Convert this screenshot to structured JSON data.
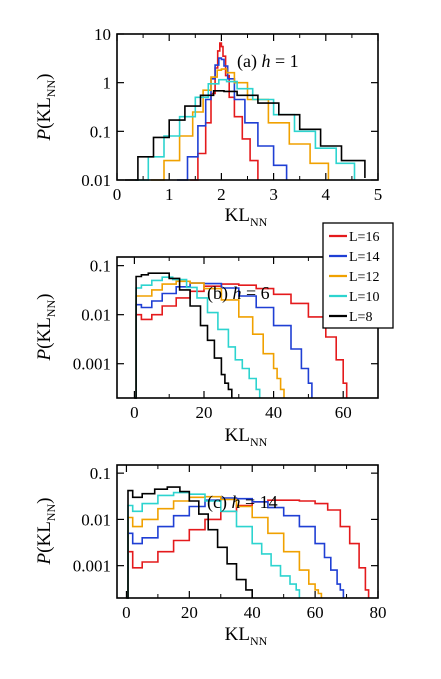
{
  "chart_data": [
    {
      "type": "line",
      "title": "(a) h = 1",
      "title_prefix": "(a) ",
      "title_var": "h",
      "title_suffix": " = 1",
      "xlabel": "KL",
      "xlabel_sub": "NN",
      "ylabel_var": "P",
      "ylabel_open": "(KL",
      "ylabel_sub": "NN",
      "ylabel_close": ")",
      "xlim": [
        0,
        5
      ],
      "ylim": [
        0.01,
        10
      ],
      "yscale": "log",
      "xticks": [
        0,
        1,
        2,
        3,
        4,
        5
      ],
      "xtick_labels": [
        "0",
        "1",
        "2",
        "3",
        "4",
        "5"
      ],
      "yticks": [
        0.01,
        0.1,
        1,
        10
      ],
      "ytick_labels": [
        "0.01",
        "0.1",
        "1",
        "10"
      ],
      "series": [
        {
          "name": "L=16",
          "color": "#e41a1c",
          "x": [
            1.4,
            1.55,
            1.7,
            1.8,
            1.88,
            1.93,
            1.97,
            2.0,
            2.03,
            2.08,
            2.15,
            2.25,
            2.4,
            2.55,
            2.7
          ],
          "y": [
            0.01,
            0.035,
            0.15,
            0.6,
            2.0,
            4.5,
            6.5,
            5.5,
            3.5,
            1.4,
            0.5,
            0.2,
            0.07,
            0.025,
            0.01
          ]
        },
        {
          "name": "L=14",
          "color": "#1f3fd4",
          "x": [
            1.15,
            1.35,
            1.55,
            1.7,
            1.8,
            1.88,
            1.95,
            2.0,
            2.05,
            2.12,
            2.25,
            2.45,
            2.7,
            3.0,
            3.25
          ],
          "y": [
            0.01,
            0.03,
            0.13,
            0.45,
            1.2,
            2.3,
            3.2,
            3.0,
            2.2,
            1.2,
            0.45,
            0.15,
            0.05,
            0.02,
            0.01
          ]
        },
        {
          "name": "L=12",
          "color": "#f0a100",
          "x": [
            0.65,
            0.9,
            1.2,
            1.45,
            1.65,
            1.8,
            1.92,
            2.0,
            2.1,
            2.25,
            2.5,
            2.9,
            3.3,
            3.7,
            4.05
          ],
          "y": [
            0.01,
            0.025,
            0.08,
            0.25,
            0.7,
            1.3,
            1.8,
            1.9,
            1.6,
            1.0,
            0.45,
            0.15,
            0.055,
            0.022,
            0.01
          ]
        },
        {
          "name": "L=10",
          "color": "#2dd4cf",
          "x": [
            0.35,
            0.6,
            0.9,
            1.2,
            1.5,
            1.75,
            1.95,
            2.1,
            2.3,
            2.6,
            3.0,
            3.4,
            3.8,
            4.2,
            4.55
          ],
          "y": [
            0.01,
            0.03,
            0.08,
            0.2,
            0.5,
            0.95,
            1.15,
            1.05,
            0.75,
            0.45,
            0.22,
            0.1,
            0.045,
            0.022,
            0.01
          ]
        },
        {
          "name": "L=8",
          "color": "#000000",
          "x": [
            0.15,
            0.4,
            0.7,
            1.0,
            1.3,
            1.6,
            1.85,
            2.05,
            2.3,
            2.7,
            3.1,
            3.5,
            3.9,
            4.3,
            4.75
          ],
          "y": [
            0.01,
            0.03,
            0.075,
            0.17,
            0.33,
            0.55,
            0.68,
            0.66,
            0.55,
            0.38,
            0.22,
            0.11,
            0.05,
            0.025,
            0.011
          ]
        }
      ]
    },
    {
      "type": "line",
      "title": "(b) h = 6",
      "title_prefix": "(b) ",
      "title_var": "h",
      "title_suffix": " = 6",
      "xlabel": "KL",
      "xlabel_sub": "NN",
      "ylabel_var": "P",
      "ylabel_open": "(KL",
      "ylabel_sub": "NN",
      "ylabel_close": ")",
      "xlim": [
        -5,
        70
      ],
      "ylim": [
        0.0002,
        0.15
      ],
      "yscale": "log",
      "xticks": [
        0,
        20,
        40,
        60
      ],
      "xtick_labels": [
        "0",
        "20",
        "40",
        "60"
      ],
      "yticks": [
        0.001,
        0.01,
        0.1
      ],
      "ytick_labels": [
        "0.001",
        "0.01",
        "0.1"
      ],
      "series": [
        {
          "name": "L=16",
          "color": "#e41a1c",
          "x": [
            0,
            0.5,
            2,
            5,
            8,
            12,
            16,
            20,
            25,
            30,
            35,
            40,
            45,
            50,
            55,
            58,
            60,
            61
          ],
          "y": [
            0.0002,
            0.01,
            0.008,
            0.01,
            0.015,
            0.022,
            0.03,
            0.038,
            0.042,
            0.04,
            0.034,
            0.026,
            0.017,
            0.009,
            0.0035,
            0.0012,
            0.0004,
            0.0002
          ]
        },
        {
          "name": "L=14",
          "color": "#1f3fd4",
          "x": [
            0,
            0.5,
            2,
            5,
            8,
            12,
            16,
            20,
            25,
            30,
            35,
            40,
            45,
            48,
            50,
            51
          ],
          "y": [
            0.0002,
            0.016,
            0.014,
            0.019,
            0.027,
            0.037,
            0.044,
            0.043,
            0.035,
            0.024,
            0.014,
            0.006,
            0.002,
            0.0008,
            0.0004,
            0.0002
          ]
        },
        {
          "name": "L=12",
          "color": "#f0a100",
          "x": [
            0,
            0.5,
            2,
            5,
            8,
            12,
            16,
            20,
            25,
            30,
            34,
            37,
            40,
            41,
            42,
            43
          ],
          "y": [
            0.0002,
            0.024,
            0.024,
            0.032,
            0.042,
            0.048,
            0.044,
            0.034,
            0.02,
            0.009,
            0.004,
            0.0016,
            0.0008,
            0.0005,
            0.0003,
            0.0002
          ]
        },
        {
          "name": "L=10",
          "color": "#2dd4cf",
          "x": [
            0,
            0.5,
            2,
            5,
            8,
            11,
            15,
            18,
            21,
            24,
            27,
            29,
            31,
            33,
            35,
            36
          ],
          "y": [
            0.0002,
            0.035,
            0.04,
            0.05,
            0.058,
            0.052,
            0.036,
            0.022,
            0.011,
            0.005,
            0.0022,
            0.0012,
            0.0008,
            0.0005,
            0.0003,
            0.0002
          ]
        },
        {
          "name": "L=8",
          "color": "#000000",
          "x": [
            0,
            0.5,
            2,
            4,
            7,
            10,
            13,
            16,
            19,
            21,
            23,
            25,
            26,
            27,
            28
          ],
          "y": [
            0.0002,
            0.06,
            0.065,
            0.07,
            0.07,
            0.055,
            0.032,
            0.015,
            0.006,
            0.003,
            0.0013,
            0.0006,
            0.0004,
            0.0003,
            0.0002
          ]
        }
      ]
    },
    {
      "type": "line",
      "title": "(c) h = 14",
      "title_prefix": "(c) ",
      "title_var": "h",
      "title_suffix": " = 14",
      "xlabel": "KL",
      "xlabel_sub": "NN",
      "ylabel_var": "P",
      "ylabel_open": "(KL",
      "ylabel_sub": "NN",
      "ylabel_close": ")",
      "xlim": [
        -3,
        80
      ],
      "ylim": [
        0.0002,
        0.15
      ],
      "yscale": "log",
      "xticks": [
        0,
        20,
        40,
        60,
        80
      ],
      "xtick_labels": [
        "0",
        "20",
        "40",
        "60",
        "80"
      ],
      "yticks": [
        0.001,
        0.01,
        0.1
      ],
      "ytick_labels": [
        "0.001",
        "0.01",
        "0.1"
      ],
      "series": [
        {
          "name": "L=16",
          "color": "#e41a1c",
          "x": [
            0,
            0.5,
            2,
            5,
            10,
            15,
            20,
            25,
            30,
            35,
            40,
            45,
            50,
            55,
            60,
            64,
            68,
            71,
            74,
            76,
            77
          ],
          "y": [
            0.0002,
            0.002,
            0.0009,
            0.0012,
            0.002,
            0.0035,
            0.006,
            0.01,
            0.015,
            0.02,
            0.024,
            0.026,
            0.026,
            0.025,
            0.022,
            0.016,
            0.007,
            0.003,
            0.0009,
            0.0003,
            0.0002
          ]
        },
        {
          "name": "L=14",
          "color": "#1f3fd4",
          "x": [
            0,
            0.5,
            2,
            5,
            10,
            15,
            20,
            25,
            30,
            35,
            40,
            45,
            50,
            55,
            60,
            63,
            65,
            67,
            68,
            69
          ],
          "y": [
            0.0002,
            0.005,
            0.003,
            0.004,
            0.007,
            0.012,
            0.019,
            0.026,
            0.029,
            0.028,
            0.024,
            0.018,
            0.012,
            0.007,
            0.003,
            0.0015,
            0.0008,
            0.0004,
            0.0003,
            0.0002
          ]
        },
        {
          "name": "L=12",
          "color": "#f0a100",
          "x": [
            0,
            0.5,
            2,
            5,
            10,
            15,
            20,
            25,
            30,
            35,
            40,
            45,
            50,
            55,
            58,
            60,
            61,
            62
          ],
          "y": [
            0.0002,
            0.011,
            0.007,
            0.01,
            0.017,
            0.025,
            0.03,
            0.031,
            0.027,
            0.019,
            0.011,
            0.005,
            0.002,
            0.0008,
            0.0004,
            0.0003,
            0.00025,
            0.0002
          ]
        },
        {
          "name": "L=10",
          "color": "#2dd4cf",
          "x": [
            0,
            0.5,
            2,
            5,
            10,
            15,
            20,
            25,
            30,
            35,
            40,
            43,
            46,
            49,
            52,
            54,
            55
          ],
          "y": [
            0.0002,
            0.02,
            0.015,
            0.022,
            0.033,
            0.038,
            0.035,
            0.025,
            0.015,
            0.007,
            0.003,
            0.0018,
            0.001,
            0.0006,
            0.0004,
            0.0003,
            0.0002
          ]
        },
        {
          "name": "L=8",
          "color": "#000000",
          "x": [
            0,
            0.5,
            2,
            5,
            9,
            13,
            17,
            20,
            23,
            26,
            29,
            32,
            35,
            38,
            40
          ],
          "y": [
            0.0002,
            0.042,
            0.03,
            0.036,
            0.045,
            0.05,
            0.04,
            0.025,
            0.013,
            0.006,
            0.0025,
            0.0011,
            0.0005,
            0.0003,
            0.0002
          ]
        }
      ]
    }
  ],
  "legend": {
    "placement": "right of panel (b), top",
    "entries": [
      "L=16",
      "L=14",
      "L=12",
      "L=10",
      "L=8"
    ]
  }
}
